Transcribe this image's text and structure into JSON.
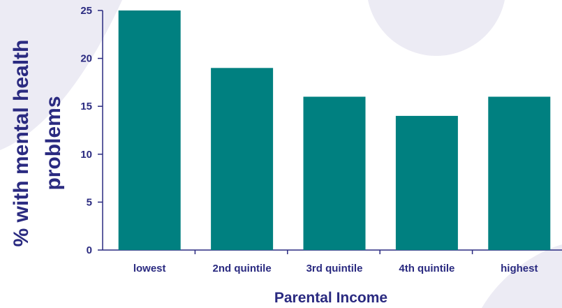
{
  "chart_data": {
    "type": "bar",
    "categories": [
      "lowest",
      "2nd quintile",
      "3rd quintile",
      "4th quintile",
      "highest"
    ],
    "values": [
      25,
      19,
      16,
      14,
      16
    ],
    "title": "",
    "xlabel": "Parental Income",
    "ylabel_lines": [
      "% with mental health",
      "problems"
    ],
    "ylim": [
      0,
      25
    ],
    "yticks": [
      0,
      5,
      10,
      15,
      20,
      25
    ],
    "grid": false,
    "colors": {
      "bar": "#008080",
      "text": "#2a2a80",
      "axis": "#2a2a80",
      "background_shape": "#ecebf4"
    }
  }
}
